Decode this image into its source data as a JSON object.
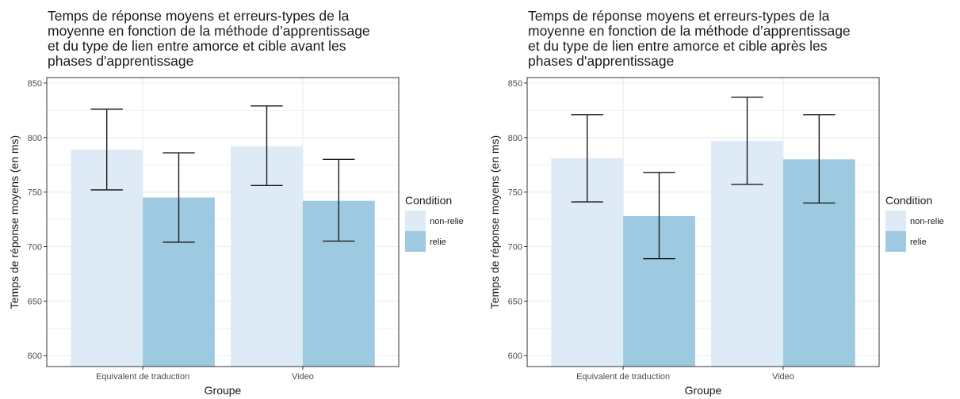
{
  "colors": {
    "non_relie": "#DEEBF7",
    "relie": "#9ECAE1",
    "panel_border": "#333333",
    "grid": "#EBEBEB",
    "errorbar": "#1A1A1A"
  },
  "chart_data": [
    {
      "type": "bar",
      "title_lines": [
        "Temps de réponse moyens et erreurs-types de la",
        "moyenne en fonction de la méthode d’apprentissage",
        "et du type de lien entre amorce et cible avant les",
        "phases d'apprentissage"
      ],
      "xlabel": "Groupe",
      "ylabel": "Temps de réponse moyens (en ms)",
      "ylim": [
        590,
        855
      ],
      "yticks": [
        600,
        650,
        700,
        750,
        800,
        850
      ],
      "categories": [
        "Equivalent de traduction",
        "Video"
      ],
      "legend_title": "Condition",
      "legend_position": "right",
      "grid": true,
      "series": [
        {
          "name": "non-relie",
          "values": [
            789,
            792
          ],
          "err_low": [
            752,
            756
          ],
          "err_high": [
            826,
            829
          ]
        },
        {
          "name": "relie",
          "values": [
            745,
            742
          ],
          "err_low": [
            704,
            705
          ],
          "err_high": [
            786,
            780
          ]
        }
      ]
    },
    {
      "type": "bar",
      "title_lines": [
        "Temps de réponse moyens et erreurs-types de la",
        "moyenne en fonction de la méthode d’apprentissage",
        "et du type de lien entre amorce et cible après les",
        "phases d'apprentissage"
      ],
      "xlabel": "Groupe",
      "ylabel": "Temps de réponse moyens (en ms)",
      "ylim": [
        590,
        855
      ],
      "yticks": [
        600,
        650,
        700,
        750,
        800,
        850
      ],
      "categories": [
        "Equivalent de traduction",
        "Video"
      ],
      "legend_title": "Condition",
      "legend_position": "right",
      "grid": true,
      "series": [
        {
          "name": "non-relie",
          "values": [
            781,
            797
          ],
          "err_low": [
            741,
            757
          ],
          "err_high": [
            821,
            837
          ]
        },
        {
          "name": "relie",
          "values": [
            728,
            780
          ],
          "err_low": [
            689,
            740
          ],
          "err_high": [
            768,
            821
          ]
        }
      ]
    }
  ]
}
